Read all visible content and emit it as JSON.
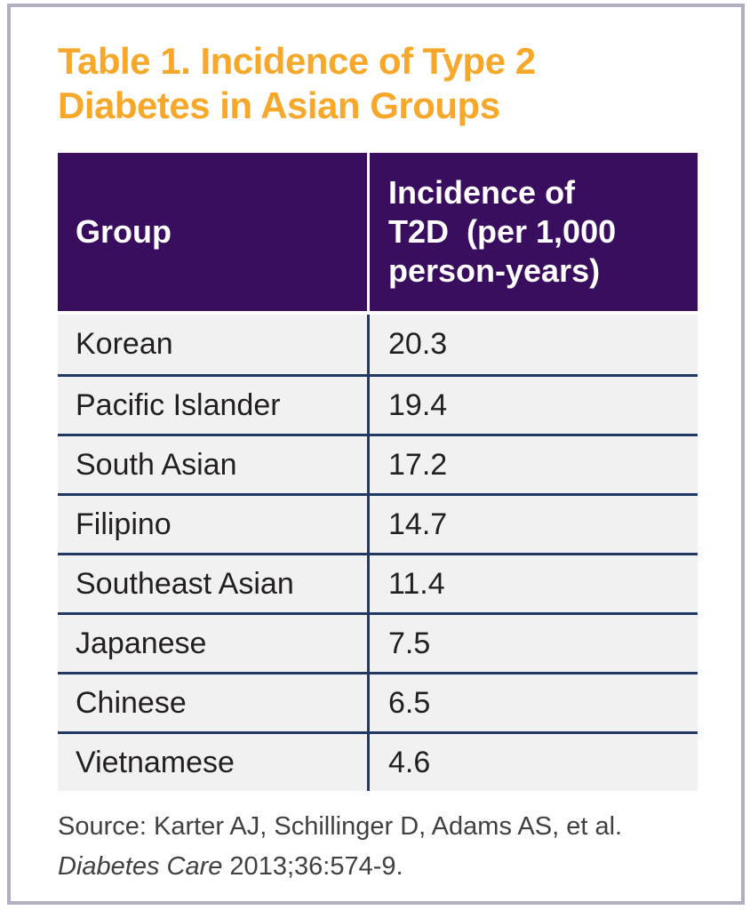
{
  "title": "Table 1. Incidence of Type 2\nDiabetes in Asian Groups",
  "table": {
    "columns": {
      "group": "Group",
      "incidence": "Incidence of\nT2D  (per 1,000\nperson-years)"
    },
    "rows": [
      {
        "group": "Korean",
        "incidence": "20.3"
      },
      {
        "group": "Pacific Islander",
        "incidence": "19.4"
      },
      {
        "group": "South Asian",
        "incidence": "17.2"
      },
      {
        "group": "Filipino",
        "incidence": "14.7"
      },
      {
        "group": "Southeast Asian",
        "incidence": "11.4"
      },
      {
        "group": "Japanese",
        "incidence": "7.5"
      },
      {
        "group": "Chinese",
        "incidence": "6.5"
      },
      {
        "group": "Vietnamese",
        "incidence": "4.6"
      }
    ]
  },
  "source": {
    "line1": "Source: Karter AJ, Schillinger D, Adams AS, et al.",
    "journal": "Diabetes Care",
    "citation": " 2013;36:574-9."
  },
  "colors": {
    "title_orange": "#f7a729",
    "header_purple": "#3a0e5f",
    "line_navy": "#1f3864",
    "row_background": "#f1f1f2",
    "card_border_gray": "#b1b0c3",
    "body_text": "#231f20",
    "source_text": "#414042"
  },
  "chart_data": {
    "type": "table",
    "title": "Table 1. Incidence of Type 2 Diabetes in Asian Groups",
    "columns": [
      "Group",
      "Incidence of T2D (per 1,000 person-years)"
    ],
    "categories": [
      "Korean",
      "Pacific Islander",
      "South Asian",
      "Filipino",
      "Southeast Asian",
      "Japanese",
      "Chinese",
      "Vietnamese"
    ],
    "values": [
      20.3,
      19.4,
      17.2,
      14.7,
      11.4,
      7.5,
      6.5,
      4.6
    ],
    "source": "Source: Karter AJ, Schillinger D, Adams AS, et al. Diabetes Care 2013;36:574-9."
  }
}
